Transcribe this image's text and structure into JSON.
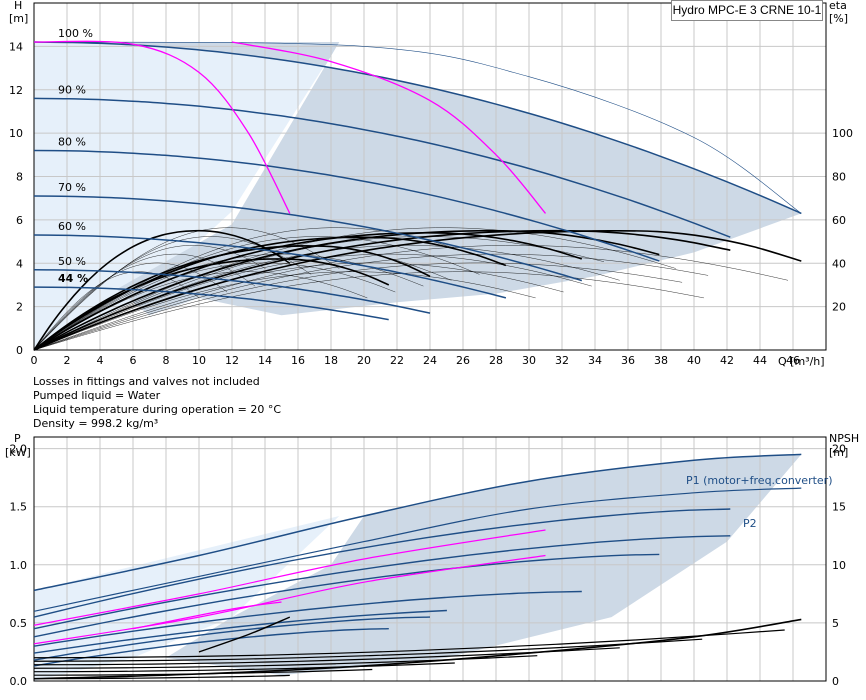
{
  "title": "Hydro MPC-E 3 CRNE 10-1",
  "notes": [
    "Losses in fittings and valves not included",
    "Pumped liquid = Water",
    "Liquid temperature during operation = 20 °C",
    "Density = 998.2 kg/m³"
  ],
  "colors": {
    "navy": "#1f4e86",
    "magenta": "#ff00ff",
    "area": "#cdd9e6",
    "area_light": "#e6f0fa",
    "grid": "#c8c8c8"
  },
  "chart_data": [
    {
      "type": "line",
      "name": "head",
      "ylabel": "H",
      "yunit": "[m]",
      "y2label": "eta",
      "y2unit": "[%]",
      "xlabel": "Q [m³/h]",
      "xlim": [
        0,
        48
      ],
      "ylim": [
        0,
        16
      ],
      "y2lim": [
        0,
        160
      ],
      "xticks": [
        0,
        2,
        4,
        6,
        8,
        10,
        12,
        14,
        16,
        18,
        20,
        22,
        24,
        26,
        28,
        30,
        32,
        34,
        36,
        38,
        40,
        42,
        44,
        46
      ],
      "yticks": [
        0,
        2,
        4,
        6,
        8,
        10,
        12,
        14
      ],
      "y2ticks": [
        20,
        40,
        60,
        80,
        100
      ],
      "speed_labels": [
        {
          "text": "100 %",
          "h": 14.2
        },
        {
          "text": "90 %",
          "h": 11.6
        },
        {
          "text": "80 %",
          "h": 9.2
        },
        {
          "text": "70 %",
          "h": 7.1
        },
        {
          "text": "60 %",
          "h": 5.3
        },
        {
          "text": "50 %",
          "h": 3.7
        },
        {
          "text": "44 %",
          "h": 2.9
        }
      ],
      "qh_curves": [
        {
          "speed": "100 %",
          "h0": 14.2,
          "qmax": 46.5,
          "hend": 6.3
        },
        {
          "speed": "90 %",
          "h0": 11.6,
          "qmax": 42.2,
          "hend": 5.2
        },
        {
          "speed": "80 %",
          "h0": 9.2,
          "qmax": 37.9,
          "hend": 4.1
        },
        {
          "speed": "70 %",
          "h0": 7.1,
          "qmax": 33.2,
          "hend": 3.2
        },
        {
          "speed": "60 %",
          "h0": 5.3,
          "qmax": 28.6,
          "hend": 2.4
        },
        {
          "speed": "50 %",
          "h0": 3.7,
          "qmax": 24.0,
          "hend": 1.7
        },
        {
          "speed": "44 %",
          "h0": 2.9,
          "qmax": 21.5,
          "hend": 1.4
        }
      ],
      "magenta_curves": [
        [
          [
            0,
            14.2
          ],
          [
            6,
            14.1
          ],
          [
            10,
            12.8
          ],
          [
            13,
            10.0
          ],
          [
            15.5,
            6.3
          ]
        ],
        [
          [
            12,
            14.2
          ],
          [
            18,
            13.3
          ],
          [
            24,
            11.5
          ],
          [
            28,
            9.0
          ],
          [
            31,
            6.3
          ]
        ]
      ],
      "eff_curves": [
        {
          "qmax": 15.5,
          "peak": 5.5,
          "qpeak": 10,
          "end": 4.0
        },
        {
          "qmax": 21.5,
          "peak": 4.2,
          "qpeak": 15,
          "end": 3.0
        },
        {
          "qmax": 24.0,
          "peak": 4.8,
          "qpeak": 17,
          "end": 3.4
        },
        {
          "qmax": 28.6,
          "peak": 5.2,
          "qpeak": 20,
          "end": 3.9
        },
        {
          "qmax": 33.2,
          "peak": 5.4,
          "qpeak": 24,
          "end": 4.2
        },
        {
          "qmax": 37.9,
          "peak": 5.5,
          "qpeak": 28,
          "end": 4.4
        },
        {
          "qmax": 42.2,
          "peak": 5.5,
          "qpeak": 32,
          "end": 4.6
        },
        {
          "qmax": 46.5,
          "peak": 5.5,
          "qpeak": 36,
          "end": 4.1
        }
      ]
    },
    {
      "type": "line",
      "name": "power",
      "ylabel": "P",
      "yunit": "[kW]",
      "y2label": "NPSH",
      "y2unit": "[m]",
      "xlim": [
        0,
        48
      ],
      "ylim": [
        0,
        2.1
      ],
      "y2lim": [
        0,
        21
      ],
      "yticks": [
        "0.0",
        "0.5",
        "1.0",
        "1.5",
        "2.0"
      ],
      "y2ticks": [
        0,
        5,
        10,
        15,
        20
      ],
      "series_labels": [
        "P1 (motor+freq.converter)",
        "P2"
      ],
      "p1": [
        [
          0,
          0.78
        ],
        [
          10,
          1.08
        ],
        [
          20,
          1.42
        ],
        [
          30,
          1.72
        ],
        [
          40,
          1.9
        ],
        [
          46.5,
          1.95
        ]
      ],
      "p2": [
        [
          0,
          0.6
        ],
        [
          10,
          0.9
        ],
        [
          20,
          1.2
        ],
        [
          30,
          1.48
        ],
        [
          40,
          1.62
        ],
        [
          46.5,
          1.66
        ]
      ],
      "p_curves": [
        {
          "p0": 0.55,
          "qmax": 42.2,
          "pend": 1.48
        },
        {
          "p0": 0.45,
          "qmax": 42.2,
          "pend": 1.25
        },
        {
          "p0": 0.38,
          "qmax": 37.9,
          "pend": 1.09
        },
        {
          "p0": 0.3,
          "qmax": 33.2,
          "pend": 0.77
        },
        {
          "p0": 0.24,
          "qmax": 28.6,
          "pend": 0.62
        },
        {
          "p0": 0.18,
          "qmax": 24.0,
          "pend": 0.55
        },
        {
          "p0": 0.13,
          "qmax": 21.5,
          "pend": 0.45
        }
      ],
      "npsh": [
        [
          0,
          0.2
        ],
        [
          10,
          0.6
        ],
        [
          20,
          1.3
        ],
        [
          30,
          2.4
        ],
        [
          40,
          3.8
        ],
        [
          46.5,
          5.3
        ]
      ]
    }
  ]
}
